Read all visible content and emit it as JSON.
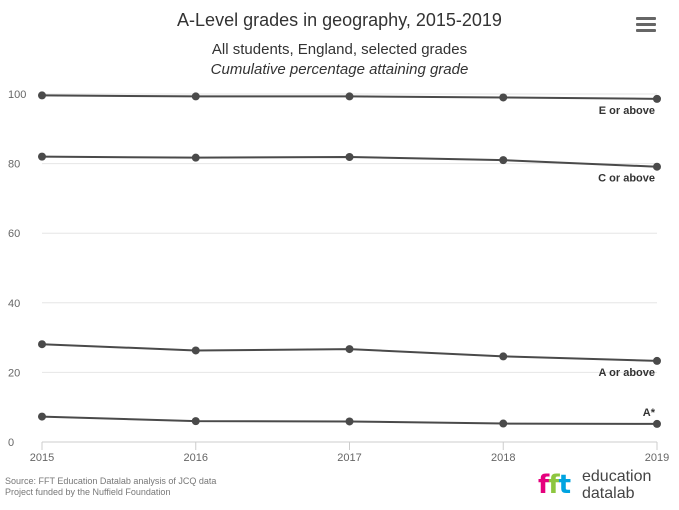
{
  "header": {
    "title": "A-Level grades in geography, 2015-2019",
    "subtitle": "All students, England, selected grades",
    "subtitle2": "Cumulative percentage attaining grade"
  },
  "menu": {
    "icon": "hamburger-menu-icon"
  },
  "credits": {
    "line1": "Source: FFT Education Datalab analysis of JCQ data",
    "line2": "Project funded by the Nuffield Foundation"
  },
  "logo": {
    "line1": "education",
    "line2": "datalab",
    "colors": {
      "pink": "#e5007d",
      "green": "#8dc63f",
      "blue": "#00a3e0"
    }
  },
  "chart_data": {
    "type": "line",
    "x": [
      2015,
      2016,
      2017,
      2018,
      2019
    ],
    "ylim": [
      0,
      100
    ],
    "yticks": [
      0,
      20,
      40,
      60,
      80,
      100
    ],
    "grid": true,
    "line_color": "#4a4a4a",
    "series": [
      {
        "name": "E or above",
        "values": [
          99.6,
          99.3,
          99.3,
          99.0,
          98.6
        ]
      },
      {
        "name": "C or above",
        "values": [
          82.0,
          81.7,
          81.9,
          81.0,
          79.1
        ]
      },
      {
        "name": "A or above",
        "values": [
          28.1,
          26.3,
          26.7,
          24.6,
          23.3
        ]
      },
      {
        "name": "A*",
        "values": [
          7.3,
          6.0,
          5.9,
          5.3,
          5.2
        ]
      }
    ]
  }
}
